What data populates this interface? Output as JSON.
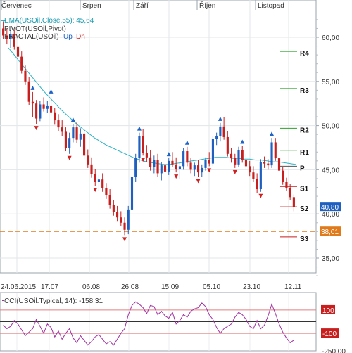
{
  "symbol": "USOil",
  "indicators": {
    "ema": {
      "label": "EMA(USOil.Close,55): 45,64",
      "color": "#2ab3c6"
    },
    "pivot": {
      "label": "PIVOT(USOil,Pivot)"
    },
    "fractal": {
      "label": "FRACTAL(USOil)",
      "up_label": "Up",
      "dn_label": "Dn",
      "up_color": "#1e63c8",
      "dn_color": "#d02020"
    },
    "cci": {
      "label": "CCI(USOil.Typical, 14): -158,31",
      "color": "#a030a0",
      "levels": [
        "100",
        "-100"
      ],
      "axis_label": "-250,00"
    }
  },
  "colors": {
    "up_candle": "#1f5fbf",
    "down_candle": "#c81e1e",
    "ema_line": "#2ab3c6",
    "pivot_level": "#2ca02c",
    "support_level": "#c81e1e",
    "pivot_main": "#555555",
    "current_price_bg": "#1f5fbf",
    "dashed_level_bg": "#e07a1a",
    "dashed_level": "#e07a1a"
  },
  "month_labels": [
    "Červenec",
    "Srpen",
    "Září",
    "Říjen",
    "Listopad"
  ],
  "date_labels": [
    "24.06.2015",
    "17.07",
    "06.08",
    "26.08",
    "15.09",
    "05.10",
    "23.10",
    "12.11"
  ],
  "price_axis": [
    "60,00",
    "55,00",
    "50,00",
    "45,00",
    "40,00",
    "35,00"
  ],
  "current_price": "40,80",
  "dashed_level": "38,01",
  "chart_data": {
    "type": "candlestick",
    "y_range": [
      32.5,
      62.5
    ],
    "pivot_levels": [
      {
        "name": "R4",
        "value": 58.4
      },
      {
        "name": "R3",
        "value": 54.2
      },
      {
        "name": "R2",
        "value": 49.7
      },
      {
        "name": "R1",
        "value": 47.2
      },
      {
        "name": "P",
        "value": 45.4
      },
      {
        "name": "S1",
        "value": 43.1
      },
      {
        "name": "S2",
        "value": 40.8
      },
      {
        "name": "S3",
        "value": 37.4
      }
    ],
    "candles": [
      [
        61.0,
        61.8,
        59.8,
        60.2
      ],
      [
        60.2,
        61.0,
        59.2,
        59.8
      ],
      [
        59.8,
        60.8,
        58.8,
        60.4
      ],
      [
        60.4,
        60.9,
        58.6,
        58.9
      ],
      [
        58.9,
        59.5,
        57.5,
        57.8
      ],
      [
        57.8,
        58.4,
        55.9,
        56.2
      ],
      [
        56.2,
        56.8,
        54.6,
        55.0
      ],
      [
        55.0,
        55.5,
        52.3,
        52.7
      ],
      [
        52.7,
        53.8,
        51.0,
        52.5
      ],
      [
        52.5,
        52.9,
        50.2,
        50.8
      ],
      [
        50.8,
        52.8,
        50.5,
        52.4
      ],
      [
        52.4,
        53.2,
        51.6,
        51.9
      ],
      [
        51.9,
        52.8,
        51.4,
        52.2
      ],
      [
        52.2,
        53.4,
        51.1,
        51.5
      ],
      [
        51.5,
        52.0,
        50.1,
        50.6
      ],
      [
        50.6,
        51.3,
        49.4,
        49.8
      ],
      [
        49.8,
        50.6,
        48.8,
        49.3
      ],
      [
        49.3,
        49.8,
        47.1,
        47.5
      ],
      [
        47.5,
        49.2,
        46.8,
        48.6
      ],
      [
        48.6,
        50.2,
        48.1,
        49.8
      ],
      [
        49.8,
        50.4,
        48.0,
        48.4
      ],
      [
        48.4,
        49.7,
        47.6,
        49.1
      ],
      [
        49.1,
        49.5,
        46.2,
        46.6
      ],
      [
        46.6,
        47.3,
        45.2,
        45.6
      ],
      [
        45.6,
        46.4,
        44.1,
        44.5
      ],
      [
        44.5,
        45.1,
        43.2,
        43.6
      ],
      [
        43.6,
        44.4,
        42.6,
        43.9
      ],
      [
        43.9,
        44.6,
        42.5,
        42.9
      ],
      [
        42.9,
        43.5,
        41.7,
        42.1
      ],
      [
        42.1,
        42.8,
        40.6,
        41.0
      ],
      [
        41.0,
        41.6,
        39.8,
        40.2
      ],
      [
        40.2,
        40.9,
        39.2,
        39.6
      ],
      [
        39.6,
        40.3,
        38.6,
        39.0
      ],
      [
        39.0,
        39.6,
        37.6,
        38.2
      ],
      [
        38.2,
        40.9,
        37.7,
        40.5
      ],
      [
        40.5,
        44.8,
        40.1,
        44.2
      ],
      [
        44.2,
        46.8,
        43.6,
        46.3
      ],
      [
        46.3,
        49.2,
        45.8,
        48.8
      ],
      [
        48.8,
        49.6,
        46.6,
        46.9
      ],
      [
        46.9,
        47.8,
        45.9,
        46.4
      ],
      [
        46.4,
        47.2,
        44.9,
        45.3
      ],
      [
        45.3,
        46.6,
        44.6,
        46.1
      ],
      [
        46.1,
        46.8,
        44.2,
        44.6
      ],
      [
        44.6,
        45.9,
        43.8,
        45.5
      ],
      [
        45.5,
        46.3,
        44.5,
        44.8
      ],
      [
        44.8,
        46.3,
        44.4,
        46.0
      ],
      [
        46.0,
        47.0,
        45.3,
        45.6
      ],
      [
        45.6,
        46.4,
        44.7,
        45.1
      ],
      [
        45.1,
        45.8,
        44.0,
        45.4
      ],
      [
        45.4,
        47.5,
        45.0,
        47.1
      ],
      [
        47.1,
        47.6,
        45.4,
        45.8
      ],
      [
        45.8,
        46.3,
        44.6,
        45.0
      ],
      [
        45.0,
        45.8,
        44.3,
        45.5
      ],
      [
        45.5,
        46.1,
        44.2,
        44.7
      ],
      [
        44.7,
        45.6,
        44.2,
        45.2
      ],
      [
        45.2,
        46.4,
        44.9,
        46.1
      ],
      [
        46.1,
        47.0,
        45.4,
        45.7
      ],
      [
        45.7,
        48.8,
        45.4,
        48.5
      ],
      [
        48.5,
        49.2,
        47.8,
        48.8
      ],
      [
        48.8,
        50.3,
        48.2,
        49.9
      ],
      [
        49.9,
        51.0,
        48.4,
        48.7
      ],
      [
        48.7,
        49.4,
        46.5,
        46.8
      ],
      [
        46.8,
        47.5,
        45.8,
        46.3
      ],
      [
        46.3,
        46.8,
        45.2,
        45.6
      ],
      [
        45.6,
        47.6,
        45.3,
        47.2
      ],
      [
        47.2,
        47.7,
        45.8,
        46.1
      ],
      [
        46.1,
        46.8,
        45.1,
        45.4
      ],
      [
        45.4,
        46.0,
        44.3,
        44.7
      ],
      [
        44.7,
        45.4,
        43.6,
        44.0
      ],
      [
        44.0,
        44.6,
        42.4,
        42.8
      ],
      [
        42.8,
        46.2,
        42.5,
        45.9
      ],
      [
        45.9,
        46.5,
        45.2,
        45.7
      ],
      [
        45.7,
        46.2,
        45.0,
        45.5
      ],
      [
        45.5,
        48.6,
        45.2,
        48.1
      ],
      [
        48.1,
        48.6,
        46.0,
        46.3
      ],
      [
        46.3,
        46.8,
        44.6,
        44.9
      ],
      [
        44.9,
        45.3,
        43.3,
        43.6
      ],
      [
        43.6,
        44.1,
        42.6,
        42.9
      ],
      [
        42.9,
        43.4,
        41.6,
        41.9
      ],
      [
        41.9,
        42.2,
        40.3,
        40.8
      ]
    ],
    "ema": [
      58.8,
      58.0,
      57.2,
      56.4,
      55.6,
      54.8,
      54.0,
      53.3,
      52.6,
      51.9,
      51.3,
      50.7,
      50.1,
      49.6,
      49.1,
      48.6,
      48.2,
      47.8,
      47.5,
      47.2,
      46.9,
      46.6,
      46.3,
      46.1,
      45.9,
      45.8,
      45.7,
      45.6,
      45.6,
      45.7,
      45.8,
      45.9,
      46.0,
      46.1,
      46.2,
      46.3,
      46.4,
      46.4,
      46.4,
      46.3,
      46.3,
      46.2,
      46.2,
      46.1,
      46.1,
      46.0,
      45.9,
      45.9,
      45.8,
      45.7,
      45.6
    ],
    "fractals_up": [
      8,
      13,
      19,
      37,
      45,
      50,
      59,
      65,
      73
    ],
    "fractals_dn": [
      9,
      18,
      25,
      33,
      38,
      47,
      53,
      56,
      63,
      70
    ],
    "cci_values": [
      -30,
      -60,
      -40,
      10,
      -20,
      -70,
      -120,
      -90,
      -60,
      20,
      -40,
      -100,
      -20,
      -50,
      -130,
      -80,
      -150,
      -100,
      -60,
      -140,
      -180,
      -120,
      -160,
      -200,
      -170,
      -130,
      -110,
      -150,
      -190,
      -170,
      -200,
      -150,
      -100,
      -60,
      60,
      140,
      170,
      150,
      120,
      70,
      140,
      130,
      60,
      90,
      50,
      30,
      80,
      -20,
      10,
      60,
      40,
      90,
      110,
      120,
      160,
      130,
      60,
      20,
      -50,
      -100,
      -60,
      -40,
      -20,
      40,
      80,
      60,
      20,
      -40,
      -60,
      10,
      -60,
      -30,
      50,
      150,
      70,
      -20,
      -90,
      -140,
      -180,
      -158
    ],
    "cci_range": [
      -250,
      250
    ]
  }
}
